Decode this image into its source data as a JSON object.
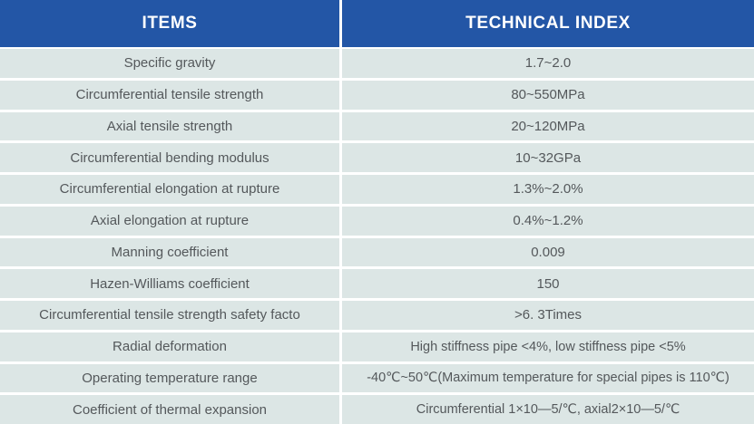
{
  "table": {
    "title": "Technical index table",
    "colors": {
      "header_bg": "#2356a6",
      "header_text": "#ffffff",
      "row_bg": "#dce6e5",
      "body_text": "#54585b",
      "grid_line": "#ffffff"
    },
    "header": {
      "items_label": "ITEMS",
      "index_label": "TECHNICAL INDEX"
    },
    "rows": [
      {
        "item": "Specific gravity",
        "value": "1.7~2.0"
      },
      {
        "item": "Circumferential tensile strength",
        "value": "80~550MPa"
      },
      {
        "item": "Axial tensile strength",
        "value": "20~120MPa"
      },
      {
        "item": "Circumferential bending modulus",
        "value": "10~32GPa"
      },
      {
        "item": "Circumferential elongation at rupture",
        "value": "1.3%~2.0%"
      },
      {
        "item": "Axial elongation at rupture",
        "value": "0.4%~1.2%"
      },
      {
        "item": "Manning coefficient",
        "value": "0.009"
      },
      {
        "item": "Hazen-Williams coefficient",
        "value": "150"
      },
      {
        "item": "Circumferential tensile strength safety facto",
        "value": ">6. 3Times"
      },
      {
        "item": "Radial deformation",
        "value": "High stiffness pipe <4%, low stiffness pipe <5%"
      },
      {
        "item": "Operating temperature range",
        "value": "-40℃~50℃(Maximum temperature for special pipes is 110℃)"
      },
      {
        "item": "Coefficient of thermal expansion",
        "value": "Circumferential 1×10—5/℃, axial2×10—5/℃"
      }
    ]
  }
}
